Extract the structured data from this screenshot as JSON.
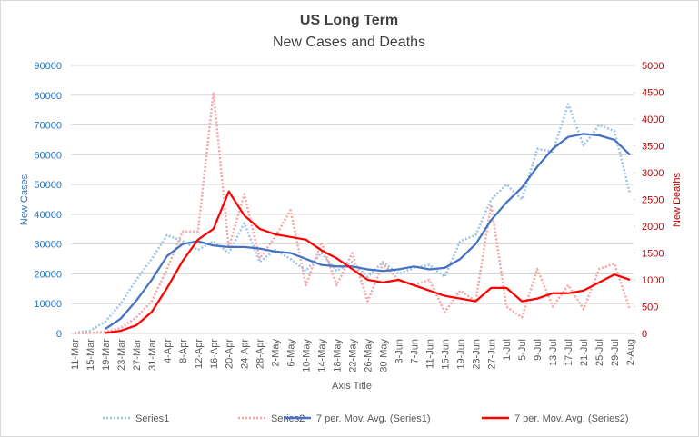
{
  "chart_data": {
    "type": "line",
    "title": "US Long Term",
    "subtitle": "New Cases and Deaths",
    "x_label": "Axis Title",
    "y_label": "New Cases",
    "y2_label": "New Deaths",
    "categories": [
      "11-Mar",
      "15-Mar",
      "19-Mar",
      "23-Mar",
      "27-Mar",
      "31-Mar",
      "4-Apr",
      "8-Apr",
      "12-Apr",
      "16-Apr",
      "20-Apr",
      "24-Apr",
      "28-Apr",
      "2-May",
      "6-May",
      "10-May",
      "14-May",
      "18-May",
      "22-May",
      "26-May",
      "30-May",
      "3-Jun",
      "7-Jun",
      "11-Jun",
      "15-Jun",
      "19-Jun",
      "23-Jun",
      "27-Jun",
      "1-Jul",
      "5-Jul",
      "9-Jul",
      "13-Jul",
      "17-Jul",
      "21-Jul",
      "25-Jul",
      "29-Jul",
      "2-Aug"
    ],
    "series": [
      {
        "name": "Series1",
        "color": "#9dc3e6",
        "style": "dotted",
        "axis": "y",
        "values": [
          300,
          900,
          4000,
          10000,
          18000,
          25000,
          33000,
          31000,
          28000,
          31000,
          27000,
          37000,
          24000,
          28000,
          25000,
          21000,
          27000,
          21000,
          24000,
          19000,
          24000,
          20000,
          22000,
          23000,
          19000,
          31000,
          33000,
          45000,
          50000,
          45000,
          62000,
          61000,
          77000,
          63000,
          70000,
          68000,
          47000
        ]
      },
      {
        "name": "Series2",
        "color": "#f4a6a6",
        "style": "dotted",
        "axis": "y2",
        "values": [
          5,
          10,
          30,
          100,
          300,
          600,
          1200,
          1900,
          1900,
          4500,
          1600,
          2600,
          1400,
          1800,
          2300,
          900,
          1700,
          900,
          1500,
          600,
          1300,
          1000,
          900,
          1000,
          400,
          800,
          600,
          2400,
          500,
          300,
          1200,
          500,
          900,
          450,
          1200,
          1300,
          450
        ]
      },
      {
        "name": "7 per. Mov. Avg. (Series1)",
        "color": "#4472c4",
        "style": "solid",
        "axis": "y",
        "values": [
          null,
          null,
          1500,
          5000,
          11000,
          18000,
          26000,
          30000,
          31000,
          29500,
          29000,
          29000,
          28500,
          27500,
          27000,
          25000,
          23000,
          22500,
          22500,
          21500,
          21000,
          21500,
          22500,
          21500,
          22000,
          25000,
          30000,
          38000,
          44000,
          49000,
          56000,
          62000,
          66000,
          67000,
          66500,
          65000,
          60000
        ]
      },
      {
        "name": "7 per. Mov. Avg. (Series2)",
        "color": "#ff0000",
        "style": "solid",
        "axis": "y2",
        "values": [
          null,
          null,
          10,
          50,
          150,
          400,
          850,
          1350,
          1750,
          1950,
          2650,
          2200,
          1950,
          1850,
          1800,
          1750,
          1550,
          1400,
          1200,
          1000,
          950,
          1000,
          900,
          800,
          700,
          650,
          600,
          850,
          850,
          600,
          650,
          750,
          750,
          800,
          950,
          1100,
          1000
        ]
      }
    ],
    "ylim": [
      0,
      90000
    ],
    "yticks": [
      0,
      10000,
      20000,
      30000,
      40000,
      50000,
      60000,
      70000,
      80000,
      90000
    ],
    "y2lim": [
      0,
      5000
    ],
    "y2ticks": [
      0,
      500,
      1000,
      1500,
      2000,
      2500,
      3000,
      3500,
      4000,
      4500,
      5000
    ],
    "y_color": "#2e75b6",
    "y2_color": "#c00000",
    "grid": true,
    "legend": "bottom"
  }
}
